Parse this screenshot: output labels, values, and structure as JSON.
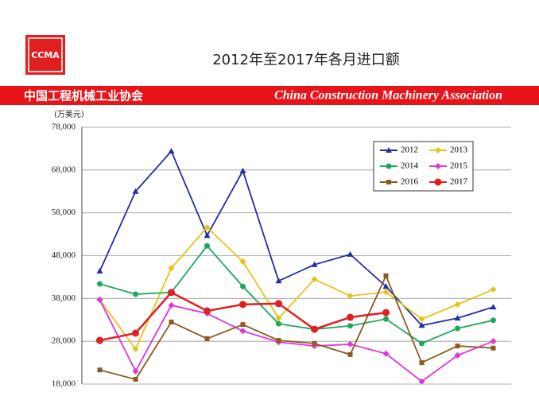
{
  "logo": "CCMA",
  "banner": {
    "left": "中国工程机械工业协会",
    "right": "China Construction Machinery Association"
  },
  "chart_data": {
    "type": "line",
    "title": "2012年至2017年各月进口额",
    "y_label": "(万美元)",
    "categories": [
      null,
      null,
      null,
      null,
      null,
      null,
      null,
      null,
      null,
      null,
      null,
      null
    ],
    "ylim": [
      18000,
      78000
    ],
    "yticks": [
      {
        "value": 18000,
        "label": "18,000"
      },
      {
        "value": 28000,
        "label": "28,000"
      },
      {
        "value": 38000,
        "label": "38,000"
      },
      {
        "value": 48000,
        "label": "48,000"
      },
      {
        "value": 58000,
        "label": "58,000"
      },
      {
        "value": 68000,
        "label": "68,000"
      },
      {
        "value": 78000,
        "label": "78,000"
      }
    ],
    "grid": true,
    "legend": "upper right",
    "series": [
      {
        "name": "2012",
        "color": "#1f2fa8",
        "marker": "triangle",
        "values": [
          44400,
          63000,
          72400,
          52700,
          67800,
          42100,
          45900,
          48300,
          40800,
          31700,
          33400,
          36000
        ]
      },
      {
        "name": "2013",
        "color": "#e8c21a",
        "marker": "diamond",
        "values": [
          37700,
          26200,
          45100,
          54600,
          46600,
          33400,
          42500,
          38600,
          39500,
          33200,
          36600,
          40100
        ]
      },
      {
        "name": "2014",
        "color": "#1fa85a",
        "marker": "circle",
        "values": [
          41400,
          39000,
          39400,
          50300,
          40800,
          32100,
          30800,
          31600,
          33200,
          27500,
          31000,
          32900
        ]
      },
      {
        "name": "2015",
        "color": "#e034d8",
        "marker": "diamond",
        "values": [
          37700,
          21000,
          36400,
          34500,
          30400,
          27800,
          26900,
          27300,
          25100,
          18600,
          24700,
          28000
        ]
      },
      {
        "name": "2016",
        "color": "#8b5a1e",
        "marker": "square",
        "values": [
          21300,
          19100,
          32500,
          28600,
          31900,
          28200,
          27500,
          24900,
          43300,
          23000,
          26900,
          26400
        ]
      },
      {
        "name": "2017",
        "color": "#e02020",
        "marker": "bigcircle",
        "values": [
          28200,
          29900,
          39400,
          35100,
          36600,
          36800,
          30800,
          33600,
          34700,
          null,
          null,
          null
        ]
      }
    ]
  }
}
